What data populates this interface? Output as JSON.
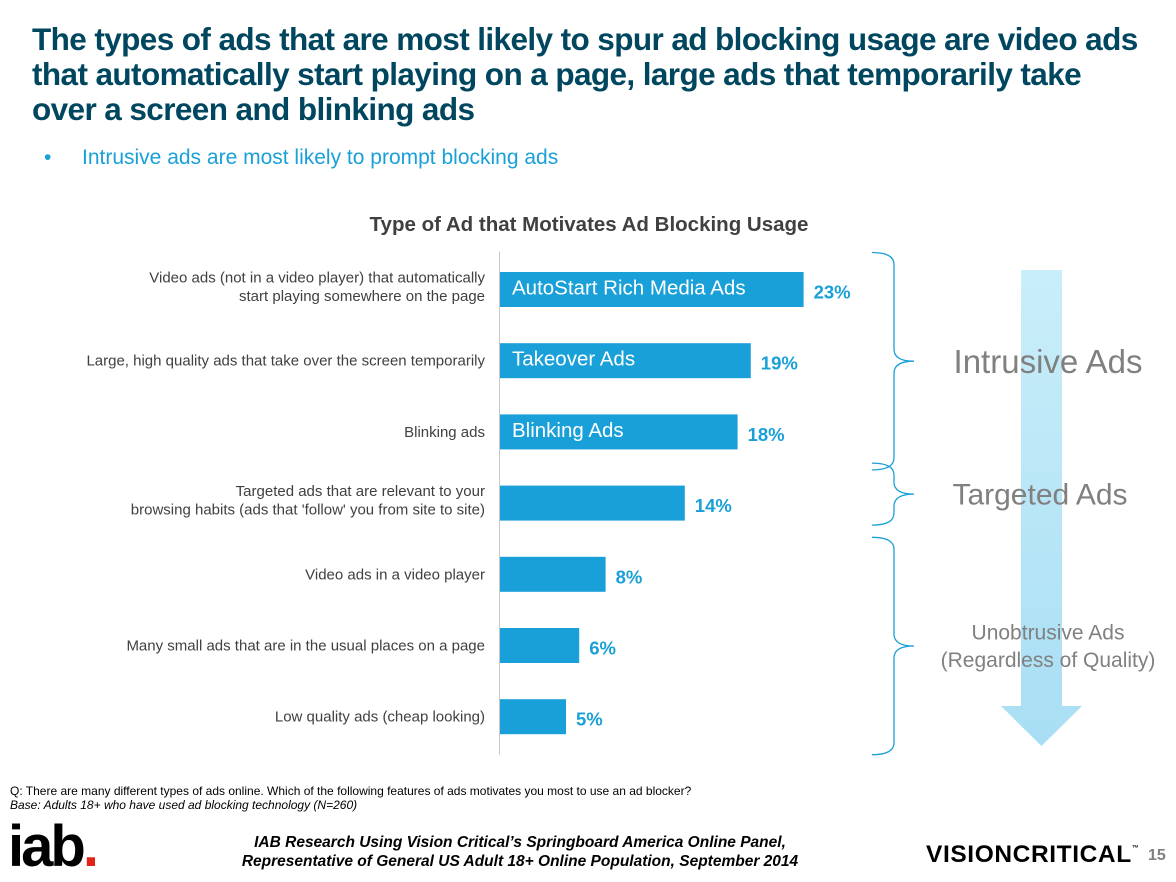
{
  "slide": {
    "title": "The types of ads that are most likely to spur ad blocking usage are video ads that automatically start playing on a page, large ads that temporarily take over a screen and blinking ads",
    "bullet": "•",
    "subtitle": "Intrusive ads are most likely to prompt blocking ads"
  },
  "chart_data": {
    "type": "bar",
    "orientation": "horizontal",
    "title": "Type of Ad that Motivates Ad Blocking Usage",
    "categories": [
      [
        "Video ads (not in a video player) that automatically",
        "start playing somewhere on the page"
      ],
      [
        "Large, high quality ads that take over the screen temporarily"
      ],
      [
        "Blinking ads"
      ],
      [
        "Targeted ads that are relevant to your",
        "browsing habits (ads that 'follow' you from site to site)"
      ],
      [
        "Video ads in a video player"
      ],
      [
        "Many small ads that are in the usual places on a page"
      ],
      [
        "Low quality ads (cheap looking)"
      ]
    ],
    "bar_labels": [
      "AutoStart Rich Media Ads",
      "Takeover Ads",
      "Blinking Ads",
      "",
      "",
      "",
      ""
    ],
    "values": [
      23,
      19,
      18,
      14,
      8,
      6,
      5
    ],
    "value_labels": [
      "23%",
      "19%",
      "18%",
      "14%",
      "8%",
      "6%",
      "5%"
    ],
    "bar_color": "#1aa0d8",
    "value_color": "#1aa0d8",
    "groups": [
      {
        "lines": [
          "Intrusive Ads"
        ],
        "rows": [
          0,
          2
        ]
      },
      {
        "lines": [
          "Targeted Ads"
        ],
        "rows": [
          3,
          3
        ]
      },
      {
        "lines": [
          "Unobtrusive Ads",
          "(Regardless of Quality)"
        ],
        "rows": [
          4,
          6
        ]
      }
    ],
    "arrow_color": "#bde8f7",
    "bracket_color": "#1aa0d8"
  },
  "footer": {
    "question": "Q:  There are many different types of ads online.  Which of the following features of ads motivates you most to use an ad blocker?",
    "base": "Base: Adults 18+ who have used ad blocking technology (N=260)",
    "source_line1": "IAB Research Using Vision Critical’s Springboard America Online Panel,",
    "source_line2": "Representative of General US Adult 18+ Online Population, September 2014",
    "iab_logo": "iab",
    "iab_logo_dot": ".",
    "vc_logo": "VISIONCRITICAL",
    "vc_logo_mark": "™",
    "page_number": "15"
  }
}
